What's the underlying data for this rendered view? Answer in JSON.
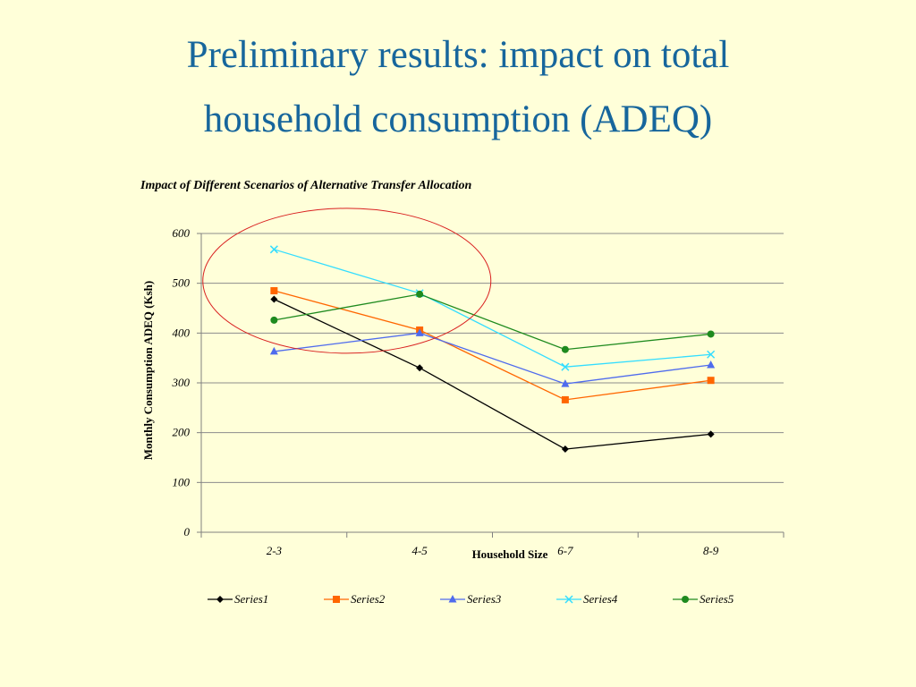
{
  "slide": {
    "title_line1": "Preliminary results: impact on total",
    "title_line2": "household consumption (ADEQ)"
  },
  "chart_data": {
    "type": "line",
    "title": "Impact of Different Scenarios of Alternative Transfer Allocation",
    "xlabel": "Household Size",
    "ylabel": "Monthly Consumption ADEQ (Ksh)",
    "categories": [
      "2-3",
      "4-5",
      "6-7",
      "8-9"
    ],
    "ylim": [
      0,
      600
    ],
    "yticks": [
      0,
      100,
      200,
      300,
      400,
      500,
      600
    ],
    "grid": true,
    "legend_position": "bottom",
    "series": [
      {
        "name": "Series1",
        "values": [
          468,
          330,
          167,
          197
        ],
        "color": "#000000",
        "marker": "diamond"
      },
      {
        "name": "Series2",
        "values": [
          485,
          406,
          266,
          305
        ],
        "color": "#FF6600",
        "marker": "square"
      },
      {
        "name": "Series3",
        "values": [
          363,
          400,
          298,
          336
        ],
        "color": "#4F6BED",
        "marker": "triangle"
      },
      {
        "name": "Series4",
        "values": [
          568,
          480,
          332,
          357
        ],
        "color": "#33DDFF",
        "marker": "x"
      },
      {
        "name": "Series5",
        "values": [
          426,
          478,
          367,
          398
        ],
        "color": "#1E8A1E",
        "marker": "circle"
      }
    ],
    "annotation": {
      "type": "ellipse",
      "color": "#D92020",
      "highlights_categories": [
        "2-3",
        "4-5"
      ]
    }
  }
}
